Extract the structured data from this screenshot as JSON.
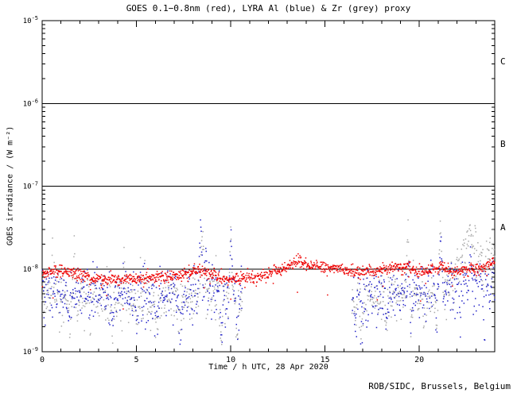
{
  "title": "GOES 0.1−0.8nm (red), LYRA Al (blue) & Zr (grey) proxy",
  "xlabel": "Time / h UTC, 28 Apr 2020",
  "ylabel": "GOES irradiance / (W m⁻²)",
  "credit": "ROB/SIDC, Brussels, Belgium",
  "flare_class_labels": [
    "C",
    "B",
    "A"
  ],
  "colors": {
    "goes": "#ee0000",
    "lyra_al": "#2424c8",
    "lyra_zr": "#a8a8a8",
    "axis": "#000000",
    "background": "#ffffff"
  },
  "chart_data": {
    "type": "scatter",
    "title": "GOES 0.1−0.8nm (red), LYRA Al (blue) & Zr (grey) proxy",
    "xlabel": "Time / h UTC, 28 Apr 2020",
    "ylabel": "GOES irradiance / (W m⁻²)",
    "x_range_hours": [
      0,
      24
    ],
    "x_major_tick_step": 5,
    "x_minor_tick_step": 1,
    "x_tick_labels": [
      {
        "h": 0,
        "label": "0"
      },
      {
        "h": 5,
        "label": "5"
      },
      {
        "h": 10,
        "label": "10"
      },
      {
        "h": 15,
        "label": "15"
      },
      {
        "h": 20,
        "label": "20"
      }
    ],
    "y_log_range": [
      -9,
      -5
    ],
    "y_tick_exponents": [
      "-5",
      "-6",
      "-7",
      "-8",
      "-9"
    ],
    "hlines_log": [
      -6,
      -7,
      -8
    ],
    "flare_class_bands": [
      {
        "label": "C",
        "log_range": [
          -6,
          -5
        ]
      },
      {
        "label": "B",
        "log_range": [
          -7,
          -6
        ]
      },
      {
        "label": "A",
        "log_range": [
          -8,
          -7
        ]
      }
    ],
    "grid": false,
    "legend": "in-title",
    "seed": 20200428,
    "series": [
      {
        "name": "GOES 0.1-0.8nm",
        "color_key": "goes",
        "cadence_min": 1.1,
        "noise_sigma_log": 0.035,
        "outlier_prob": 0.015,
        "outlier_depth": 0.3,
        "trend_log": [
          [
            0,
            -8.07
          ],
          [
            0.7,
            -8.01
          ],
          [
            1.5,
            -8.05
          ],
          [
            2.5,
            -8.1
          ],
          [
            3.5,
            -8.13
          ],
          [
            5,
            -8.12
          ],
          [
            6.5,
            -8.09
          ],
          [
            7.5,
            -8.07
          ],
          [
            8.3,
            -8.01
          ],
          [
            8.7,
            -8.04
          ],
          [
            9.5,
            -8.11
          ],
          [
            10.5,
            -8.12
          ],
          [
            11.5,
            -8.09
          ],
          [
            12.3,
            -8.04
          ],
          [
            13,
            -7.97
          ],
          [
            13.6,
            -7.9
          ],
          [
            14.2,
            -7.96
          ],
          [
            15,
            -7.99
          ],
          [
            16,
            -8.01
          ],
          [
            17,
            -8.04
          ],
          [
            18,
            -8.01
          ],
          [
            18.7,
            -7.99
          ],
          [
            19.3,
            -7.97
          ],
          [
            20,
            -8.04
          ],
          [
            20.7,
            -8.01
          ],
          [
            21.2,
            -7.98
          ],
          [
            21.8,
            -8.04
          ],
          [
            22.5,
            -8.01
          ],
          [
            23.2,
            -8.0
          ],
          [
            23.6,
            -7.94
          ],
          [
            24,
            -7.89
          ]
        ],
        "gaps": [],
        "spikes": [],
        "dips": []
      },
      {
        "name": "LYRA Al proxy",
        "color_key": "lyra_al",
        "cadence_min": 1.3,
        "noise_sigma_log": 0.16,
        "outlier_prob": 0,
        "outlier_depth": 0,
        "trend_log": [
          [
            0,
            -8.28
          ],
          [
            5,
            -8.32
          ],
          [
            10.6,
            -8.3
          ],
          [
            16.4,
            -8.32
          ],
          [
            19,
            -8.3
          ],
          [
            22,
            -8.22
          ],
          [
            23,
            -8.18
          ],
          [
            24,
            -8.2
          ]
        ],
        "gaps": [
          [
            10.62,
            16.42
          ]
        ],
        "spikes": [
          {
            "t": 6.05,
            "peak_log": -7.62,
            "w": 0.07
          },
          {
            "t": 8.42,
            "peak_log": -7.22,
            "w": 0.16
          },
          {
            "t": 8.68,
            "peak_log": -7.55,
            "w": 0.09
          },
          {
            "t": 10.02,
            "peak_log": -7.5,
            "w": 0.12
          },
          {
            "t": 19.46,
            "peak_log": -7.75,
            "w": 0.1
          },
          {
            "t": 21.14,
            "peak_log": -7.5,
            "w": 0.12
          },
          {
            "t": 22.72,
            "peak_log": -7.7,
            "w": 0.1
          },
          {
            "t": 23.9,
            "peak_log": -7.8,
            "w": 0.07
          }
        ],
        "dips": [
          {
            "t": 1.45,
            "depth": 0.55,
            "w": 0.12
          },
          {
            "t": 2.55,
            "depth": 0.45,
            "w": 0.1
          },
          {
            "t": 3.75,
            "depth": 0.75,
            "w": 0.13
          },
          {
            "t": 5.0,
            "depth": 0.5,
            "w": 0.1
          },
          {
            "t": 6.05,
            "depth": 0.8,
            "w": 0.13
          },
          {
            "t": 7.3,
            "depth": 0.7,
            "w": 0.13
          },
          {
            "t": 8.5,
            "depth": 0.5,
            "w": 0.1
          },
          {
            "t": 9.5,
            "depth": 0.75,
            "w": 0.13
          },
          {
            "t": 10.35,
            "depth": 0.7,
            "w": 0.16
          },
          {
            "t": 16.6,
            "depth": 0.5,
            "w": 0.1
          },
          {
            "t": 16.95,
            "depth": 0.7,
            "w": 0.13
          },
          {
            "t": 18.25,
            "depth": 0.5,
            "w": 0.1
          },
          {
            "t": 19.55,
            "depth": 0.6,
            "w": 0.12
          },
          {
            "t": 20.9,
            "depth": 0.55,
            "w": 0.12
          },
          {
            "t": 22.15,
            "depth": 0.5,
            "w": 0.1
          },
          {
            "t": 23.45,
            "depth": 0.6,
            "w": 0.13
          }
        ]
      },
      {
        "name": "LYRA Zr proxy",
        "color_key": "lyra_zr",
        "cadence_min": 1.3,
        "noise_sigma_log": 0.15,
        "outlier_prob": 0,
        "outlier_depth": 0,
        "trend_log": [
          [
            0,
            -8.33
          ],
          [
            5,
            -8.36
          ],
          [
            10.6,
            -8.33
          ],
          [
            16.4,
            -8.35
          ],
          [
            19,
            -8.32
          ],
          [
            21,
            -8.3
          ],
          [
            21.8,
            -8.05
          ],
          [
            22.3,
            -7.85
          ],
          [
            22.8,
            -7.76
          ],
          [
            23.3,
            -7.78
          ],
          [
            23.8,
            -7.82
          ],
          [
            24,
            -7.8
          ]
        ],
        "gaps": [
          [
            10.62,
            16.42
          ]
        ],
        "spikes": [
          {
            "t": 0.55,
            "peak_log": -7.5,
            "w": 0.05
          },
          {
            "t": 1.7,
            "peak_log": -7.55,
            "w": 0.07
          },
          {
            "t": 4.35,
            "peak_log": -7.65,
            "w": 0.07
          },
          {
            "t": 8.5,
            "peak_log": -7.12,
            "w": 0.15
          },
          {
            "t": 10.0,
            "peak_log": -7.3,
            "w": 0.1
          },
          {
            "t": 19.4,
            "peak_log": -7.3,
            "w": 0.12
          },
          {
            "t": 21.12,
            "peak_log": -7.25,
            "w": 0.13
          },
          {
            "t": 22.68,
            "peak_log": -7.38,
            "w": 0.12
          }
        ],
        "dips": [
          {
            "t": 1.45,
            "depth": 0.5,
            "w": 0.12
          },
          {
            "t": 2.55,
            "depth": 0.4,
            "w": 0.1
          },
          {
            "t": 3.75,
            "depth": 0.7,
            "w": 0.13
          },
          {
            "t": 5.0,
            "depth": 0.55,
            "w": 0.1
          },
          {
            "t": 6.05,
            "depth": 0.75,
            "w": 0.13
          },
          {
            "t": 7.3,
            "depth": 0.75,
            "w": 0.13
          },
          {
            "t": 8.5,
            "depth": 0.45,
            "w": 0.1
          },
          {
            "t": 9.5,
            "depth": 0.7,
            "w": 0.13
          },
          {
            "t": 10.35,
            "depth": 0.65,
            "w": 0.16
          },
          {
            "t": 16.6,
            "depth": 0.45,
            "w": 0.1
          },
          {
            "t": 16.95,
            "depth": 0.65,
            "w": 0.13
          },
          {
            "t": 18.25,
            "depth": 0.45,
            "w": 0.1
          },
          {
            "t": 19.55,
            "depth": 0.55,
            "w": 0.12
          },
          {
            "t": 20.9,
            "depth": 0.5,
            "w": 0.12
          },
          {
            "t": 22.15,
            "depth": 0.45,
            "w": 0.1
          },
          {
            "t": 23.45,
            "depth": 0.55,
            "w": 0.13
          }
        ]
      }
    ]
  }
}
